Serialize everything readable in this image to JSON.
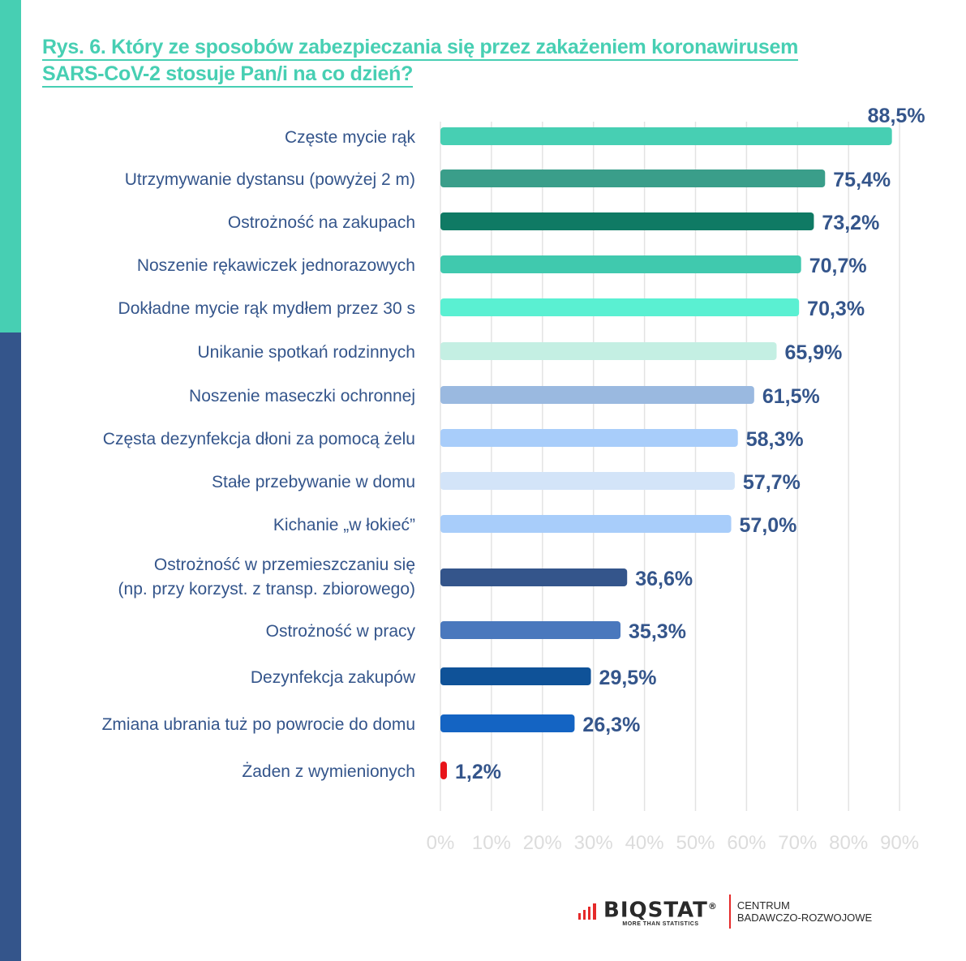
{
  "title_line1": "Rys. 6. Który ze sposobów zabezpieczania się przez zakażeniem koronawirusem",
  "title_line2": "SARS-CoV-2 stosuje Pan/i na co dzień?",
  "chart_data": {
    "type": "bar",
    "orientation": "horizontal",
    "title": "Rys. 6. Który ze sposobów zabezpieczania się przez zakażeniem koronawirusem SARS-CoV-2 stosuje Pan/i na co dzień?",
    "categories": [
      [
        "Częste mycie rąk"
      ],
      [
        "Utrzymywanie dystansu (powyżej 2 m)"
      ],
      [
        "Ostrożność na zakupach"
      ],
      [
        "Noszenie rękawiczek jednorazowych"
      ],
      [
        "Dokładne mycie rąk mydłem przez 30 s"
      ],
      [
        "Unikanie spotkań rodzinnych"
      ],
      [
        "Noszenie maseczki ochronnej"
      ],
      [
        "Częsta dezynfekcja dłoni za pomocą żelu"
      ],
      [
        "Stałe przebywanie w domu"
      ],
      [
        "Kichanie „w łokieć”"
      ],
      [
        "Ostrożność w przemieszczaniu się",
        "(np. przy korzyst. z transp. zbiorowego)"
      ],
      [
        "Ostrożność w pracy"
      ],
      [
        "Dezynfekcja zakupów"
      ],
      [
        "Zmiana ubrania tuż po powrocie do domu"
      ],
      [
        "Żaden z wymienionych"
      ]
    ],
    "values": [
      88.5,
      75.4,
      73.2,
      70.7,
      70.3,
      65.9,
      61.5,
      58.3,
      57.7,
      57.0,
      36.6,
      35.3,
      29.5,
      26.3,
      1.2
    ],
    "value_labels": [
      "88,5%",
      "75,4%",
      "73,2%",
      "70,7%",
      "70,3%",
      "65,9%",
      "61,5%",
      "58,3%",
      "57,7%",
      "57,0%",
      "36,6%",
      "35,3%",
      "29,5%",
      "26,3%",
      "1,2%"
    ],
    "colors": [
      "#47cfb3",
      "#3a9e8a",
      "#0f7a64",
      "#40c9ae",
      "#5af0d2",
      "#c4efe3",
      "#9ab9e0",
      "#a8cdfa",
      "#d3e4f8",
      "#a8cdfa",
      "#34558b",
      "#4a78bd",
      "#0f5298",
      "#1464c3",
      "#e8141a"
    ],
    "xlim": [
      0,
      90
    ],
    "xticks": [
      "0%",
      "10%",
      "20%",
      "30%",
      "40%",
      "50%",
      "60%",
      "70%",
      "80%",
      "90%"
    ],
    "grid": true
  },
  "logo": {
    "brand": "BIQSTAT",
    "registered": "®",
    "tagline": "MORE THAN STATISTICS",
    "line1": "CENTRUM",
    "line2": "BADAWCZO-ROZWOJOWE"
  }
}
